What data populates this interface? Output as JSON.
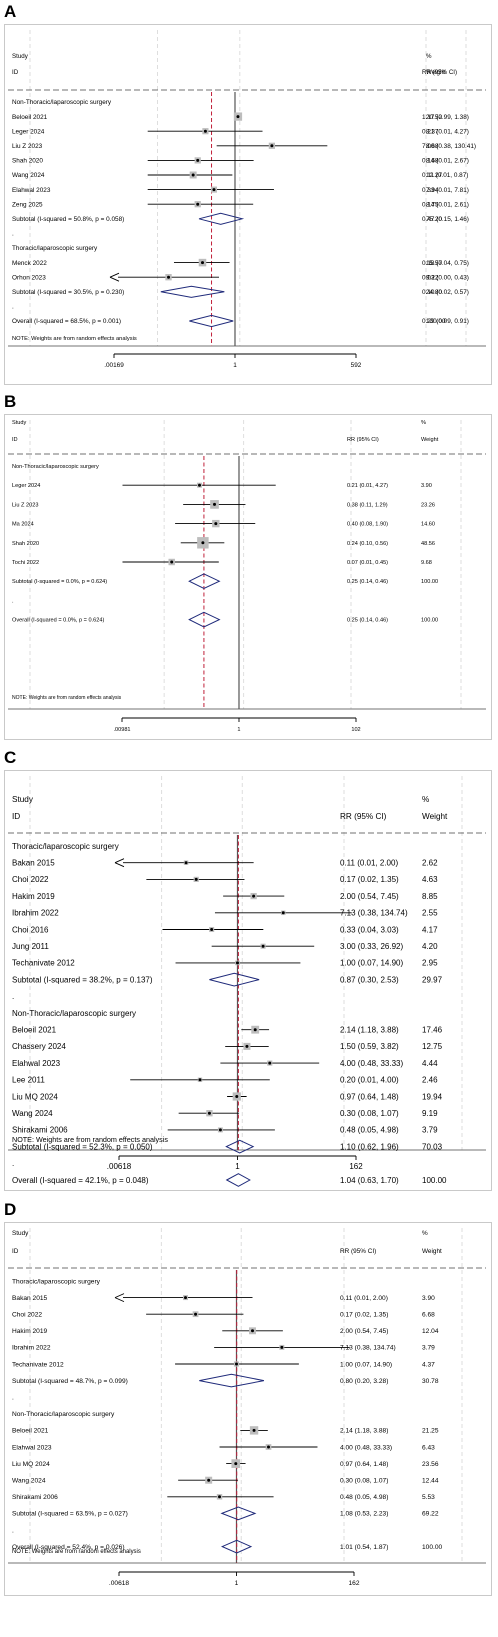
{
  "chart_data": [
    {
      "type": "forest",
      "panel": "A",
      "header": {
        "study": "Study",
        "id": "ID",
        "effect": "RR (95% CI)",
        "pct": "%",
        "weight": "Weight"
      },
      "axis_ticks": [
        "1",
        ".00169",
        "592"
      ],
      "axis_range": [
        0.00169,
        592
      ],
      "scale": "log",
      "note": "NOTE: Weights are from random effects analysis",
      "rows": [
        {
          "kind": "group",
          "label": "Non-Thoracic/laparoscopic surgery"
        },
        {
          "kind": "study",
          "label": "Beloeil 2021",
          "rr": 1.17,
          "lo": 0.99,
          "hi": 1.38,
          "text": "1.17 (0.99, 1.38)",
          "weight": "20.52"
        },
        {
          "kind": "study",
          "label": "Leger 2024",
          "rr": 0.21,
          "lo": 0.01,
          "hi": 4.27,
          "text": "0.21 (0.01, 4.27)",
          "weight": "8.37"
        },
        {
          "kind": "study",
          "label": "Liu Z 2023",
          "rr": 7.0,
          "lo": 0.38,
          "hi": 130.41,
          "text": "7.00 (0.38, 130.41)",
          "weight": "8.68"
        },
        {
          "kind": "study",
          "label": "Shah 2020",
          "rr": 0.14,
          "lo": 0.01,
          "hi": 2.67,
          "text": "0.14 (0.01, 2.67)",
          "weight": "8.68"
        },
        {
          "kind": "study",
          "label": "Wang 2024",
          "rr": 0.11,
          "lo": 0.01,
          "hi": 0.87,
          "text": "0.11 (0.01, 0.87)",
          "weight": "12.27"
        },
        {
          "kind": "study",
          "label": "Elahwal 2023",
          "rr": 0.33,
          "lo": 0.01,
          "hi": 7.81,
          "text": "0.33 (0.01, 7.81)",
          "weight": "7.94"
        },
        {
          "kind": "study",
          "label": "Zeng 2025",
          "rr": 0.14,
          "lo": 0.01,
          "hi": 2.61,
          "text": "0.14 (0.01, 2.61)",
          "weight": "8.75"
        },
        {
          "kind": "subtotal",
          "label": "Subtotal  (I-squared = 50.8%, p = 0.058)",
          "rr": 0.47,
          "lo": 0.15,
          "hi": 1.46,
          "text": "0.47 (0.15, 1.46)",
          "weight": "75.20"
        },
        {
          "kind": "dot",
          "label": "."
        },
        {
          "kind": "group",
          "label": "Thoracic/laparoscopic surgery"
        },
        {
          "kind": "study",
          "label": "Menck 2022",
          "rr": 0.18,
          "lo": 0.04,
          "hi": 0.75,
          "text": "0.18 (0.04, 0.75)",
          "weight": "15.57"
        },
        {
          "kind": "study",
          "label": "Orhon 2023",
          "rr": 0.03,
          "lo": 0.0,
          "hi": 0.43,
          "text": "0.03 (0.00, 0.43)",
          "weight": "9.22",
          "arrow_left": true
        },
        {
          "kind": "subtotal",
          "label": "Subtotal  (I-squared = 30.5%, p = 0.230)",
          "rr": 0.1,
          "lo": 0.02,
          "hi": 0.57,
          "text": "0.10 (0.02, 0.57)",
          "weight": "24.80"
        },
        {
          "kind": "dot",
          "label": "."
        },
        {
          "kind": "overall",
          "label": "Overall  (I-squared = 68.5%, p = 0.001)",
          "rr": 0.29,
          "lo": 0.09,
          "hi": 0.91,
          "text": "0.29 (0.09, 0.91)",
          "weight": "100.00"
        }
      ]
    },
    {
      "type": "forest",
      "panel": "B",
      "header": {
        "study": "Study",
        "id": "ID",
        "effect": "RR (95% CI)",
        "pct": "%",
        "weight": "Weight"
      },
      "axis_ticks": [
        "1",
        ".00981",
        "102"
      ],
      "axis_range": [
        0.00981,
        102
      ],
      "scale": "log",
      "note": "NOTE: Weights are from random effects analysis",
      "rows": [
        {
          "kind": "group",
          "label": "Non-Thoracic/laparoscopic surgery"
        },
        {
          "kind": "study",
          "label": "Leger 2024",
          "rr": 0.21,
          "lo": 0.01,
          "hi": 4.27,
          "text": "0.21 (0.01, 4.27)",
          "weight": "3.90"
        },
        {
          "kind": "study",
          "label": "Liu Z 2023",
          "rr": 0.38,
          "lo": 0.11,
          "hi": 1.29,
          "text": "0.38 (0.11, 1.29)",
          "weight": "23.26"
        },
        {
          "kind": "study",
          "label": "Ma 2024",
          "rr": 0.4,
          "lo": 0.08,
          "hi": 1.9,
          "text": "0.40 (0.08, 1.90)",
          "weight": "14.60"
        },
        {
          "kind": "study",
          "label": "Shah 2020",
          "rr": 0.24,
          "lo": 0.1,
          "hi": 0.56,
          "text": "0.24 (0.10, 0.56)",
          "weight": "48.56"
        },
        {
          "kind": "study",
          "label": "Tochi 2022",
          "rr": 0.07,
          "lo": 0.01,
          "hi": 0.45,
          "text": "0.07 (0.01, 0.45)",
          "weight": "9.68"
        },
        {
          "kind": "subtotal",
          "label": "Subtotal  (I-squared = 0.0%, p = 0.624)",
          "rr": 0.25,
          "lo": 0.14,
          "hi": 0.46,
          "text": "0.25 (0.14, 0.46)",
          "weight": "100.00"
        },
        {
          "kind": "dot",
          "label": "."
        },
        {
          "kind": "overall",
          "label": "Overall  (I-squared = 0.0%, p = 0.624)",
          "rr": 0.25,
          "lo": 0.14,
          "hi": 0.46,
          "text": "0.25 (0.14, 0.46)",
          "weight": "100.00"
        }
      ]
    },
    {
      "type": "forest",
      "panel": "C",
      "header": {
        "study": "Study",
        "id": "ID",
        "effect": "RR (95% CI)",
        "pct": "%",
        "weight": "Weight"
      },
      "axis_ticks": [
        "1",
        ".00618",
        "162"
      ],
      "axis_range": [
        0.00618,
        162
      ],
      "scale": "log",
      "note": "NOTE: Weights are from random effects analysis",
      "rows": [
        {
          "kind": "group",
          "label": "Thoracic/laparoscopic surgery"
        },
        {
          "kind": "study",
          "label": "Bakan 2015",
          "rr": 0.11,
          "lo": 0.01,
          "hi": 2.0,
          "text": "0.11 (0.01, 2.00)",
          "weight": "2.62",
          "arrow_left": true
        },
        {
          "kind": "study",
          "label": "Choi 2022",
          "rr": 0.17,
          "lo": 0.02,
          "hi": 1.35,
          "text": "0.17 (0.02, 1.35)",
          "weight": "4.63"
        },
        {
          "kind": "study",
          "label": "Hakim 2019",
          "rr": 2.0,
          "lo": 0.54,
          "hi": 7.45,
          "text": "2.00 (0.54, 7.45)",
          "weight": "8.85"
        },
        {
          "kind": "study",
          "label": "Ibrahim 2022",
          "rr": 7.13,
          "lo": 0.38,
          "hi": 134.74,
          "text": "7.13 (0.38, 134.74)",
          "weight": "2.55"
        },
        {
          "kind": "study",
          "label": "Choi 2016",
          "rr": 0.33,
          "lo": 0.04,
          "hi": 3.03,
          "text": "0.33 (0.04, 3.03)",
          "weight": "4.17"
        },
        {
          "kind": "study",
          "label": "Jung 2011",
          "rr": 3.0,
          "lo": 0.33,
          "hi": 26.92,
          "text": "3.00 (0.33, 26.92)",
          "weight": "4.20"
        },
        {
          "kind": "study",
          "label": "Techanivate 2012",
          "rr": 1.0,
          "lo": 0.07,
          "hi": 14.9,
          "text": "1.00 (0.07, 14.90)",
          "weight": "2.95"
        },
        {
          "kind": "subtotal",
          "label": "Subtotal  (I-squared = 38.2%, p = 0.137)",
          "rr": 0.87,
          "lo": 0.3,
          "hi": 2.53,
          "text": "0.87 (0.30, 2.53)",
          "weight": "29.97"
        },
        {
          "kind": "dot",
          "label": "."
        },
        {
          "kind": "group",
          "label": "Non-Thoracic/laparoscopic surgery"
        },
        {
          "kind": "study",
          "label": "Beloeil 2021",
          "rr": 2.14,
          "lo": 1.18,
          "hi": 3.88,
          "text": "2.14 (1.18, 3.88)",
          "weight": "17.46"
        },
        {
          "kind": "study",
          "label": "Chassery 2024",
          "rr": 1.5,
          "lo": 0.59,
          "hi": 3.82,
          "text": "1.50 (0.59, 3.82)",
          "weight": "12.75"
        },
        {
          "kind": "study",
          "label": "Elahwal 2023",
          "rr": 4.0,
          "lo": 0.48,
          "hi": 33.33,
          "text": "4.00 (0.48, 33.33)",
          "weight": "4.44"
        },
        {
          "kind": "study",
          "label": "Lee 2011",
          "rr": 0.2,
          "lo": 0.01,
          "hi": 4.0,
          "text": "0.20 (0.01, 4.00)",
          "weight": "2.46"
        },
        {
          "kind": "study",
          "label": "Liu MQ 2024",
          "rr": 0.97,
          "lo": 0.64,
          "hi": 1.48,
          "text": "0.97 (0.64, 1.48)",
          "weight": "19.94"
        },
        {
          "kind": "study",
          "label": "Wang 2024",
          "rr": 0.3,
          "lo": 0.08,
          "hi": 1.07,
          "text": "0.30 (0.08, 1.07)",
          "weight": "9.19"
        },
        {
          "kind": "study",
          "label": "Shirakami 2006",
          "rr": 0.48,
          "lo": 0.05,
          "hi": 4.98,
          "text": "0.48 (0.05, 4.98)",
          "weight": "3.79"
        },
        {
          "kind": "subtotal",
          "label": "Subtotal  (I-squared = 52.3%, p = 0.050)",
          "rr": 1.1,
          "lo": 0.62,
          "hi": 1.96,
          "text": "1.10 (0.62, 1.96)",
          "weight": "70.03"
        },
        {
          "kind": "dot",
          "label": "."
        },
        {
          "kind": "overall",
          "label": "Overall  (I-squared = 42.1%, p = 0.048)",
          "rr": 1.04,
          "lo": 0.63,
          "hi": 1.7,
          "text": "1.04 (0.63, 1.70)",
          "weight": "100.00"
        }
      ]
    },
    {
      "type": "forest",
      "panel": "D",
      "header": {
        "study": "Study",
        "id": "ID",
        "effect": "RR (95% CI)",
        "pct": "%",
        "weight": "Weight"
      },
      "axis_ticks": [
        "1",
        ".00618",
        "162"
      ],
      "axis_range": [
        0.00618,
        162
      ],
      "scale": "log",
      "note": "NOTE: Weights are from random effects analysis",
      "rows": [
        {
          "kind": "group",
          "label": "Thoracic/laparoscopic surgery"
        },
        {
          "kind": "study",
          "label": "Bakan 2015",
          "rr": 0.11,
          "lo": 0.01,
          "hi": 2.0,
          "text": "0.11 (0.01, 2.00)",
          "weight": "3.90",
          "arrow_left": true
        },
        {
          "kind": "study",
          "label": "Choi 2022",
          "rr": 0.17,
          "lo": 0.02,
          "hi": 1.35,
          "text": "0.17 (0.02, 1.35)",
          "weight": "6.68"
        },
        {
          "kind": "study",
          "label": "Hakim 2019",
          "rr": 2.0,
          "lo": 0.54,
          "hi": 7.45,
          "text": "2.00 (0.54, 7.45)",
          "weight": "12.04"
        },
        {
          "kind": "study",
          "label": "Ibrahim 2022",
          "rr": 7.13,
          "lo": 0.38,
          "hi": 134.74,
          "text": "7.13 (0.38, 134.74)",
          "weight": "3.79"
        },
        {
          "kind": "study",
          "label": "Techanivate 2012",
          "rr": 1.0,
          "lo": 0.07,
          "hi": 14.9,
          "text": "1.00 (0.07, 14.90)",
          "weight": "4.37"
        },
        {
          "kind": "subtotal",
          "label": "Subtotal  (I-squared = 48.7%, p = 0.099)",
          "rr": 0.8,
          "lo": 0.2,
          "hi": 3.28,
          "text": "0.80 (0.20, 3.28)",
          "weight": "30.78"
        },
        {
          "kind": "dot",
          "label": "."
        },
        {
          "kind": "group",
          "label": "Non-Thoracic/laparoscopic surgery"
        },
        {
          "kind": "study",
          "label": "Beloeil 2021",
          "rr": 2.14,
          "lo": 1.18,
          "hi": 3.88,
          "text": "2.14 (1.18, 3.88)",
          "weight": "21.25"
        },
        {
          "kind": "study",
          "label": "Elahwal 2023",
          "rr": 4.0,
          "lo": 0.48,
          "hi": 33.33,
          "text": "4.00 (0.48, 33.33)",
          "weight": "6.43"
        },
        {
          "kind": "study",
          "label": "Liu MQ 2024",
          "rr": 0.97,
          "lo": 0.64,
          "hi": 1.48,
          "text": "0.97 (0.64, 1.48)",
          "weight": "23.56"
        },
        {
          "kind": "study",
          "label": "Wang 2024",
          "rr": 0.3,
          "lo": 0.08,
          "hi": 1.07,
          "text": "0.30 (0.08, 1.07)",
          "weight": "12.44"
        },
        {
          "kind": "study",
          "label": "Shirakami 2006",
          "rr": 0.48,
          "lo": 0.05,
          "hi": 4.98,
          "text": "0.48 (0.05, 4.98)",
          "weight": "5.53"
        },
        {
          "kind": "subtotal",
          "label": "Subtotal  (I-squared = 63.5%, p = 0.027)",
          "rr": 1.08,
          "lo": 0.53,
          "hi": 2.23,
          "text": "1.08 (0.53, 2.23)",
          "weight": "69.22"
        },
        {
          "kind": "dot",
          "label": "."
        },
        {
          "kind": "overall",
          "label": "Overall  (I-squared = 52.4%, p = 0.026)",
          "rr": 1.01,
          "lo": 0.54,
          "hi": 1.87,
          "text": "1.01 (0.54, 1.87)",
          "weight": "100.00"
        }
      ]
    }
  ],
  "colors": {
    "ci_line": "#000000",
    "weight_box": "#bdbdbd",
    "diamond": "#1f2a7a",
    "overall_line": "#c0203a",
    "null_line": "#555555",
    "frame": "#c9c9c9",
    "dashed_grid": "#d6d6d6"
  }
}
